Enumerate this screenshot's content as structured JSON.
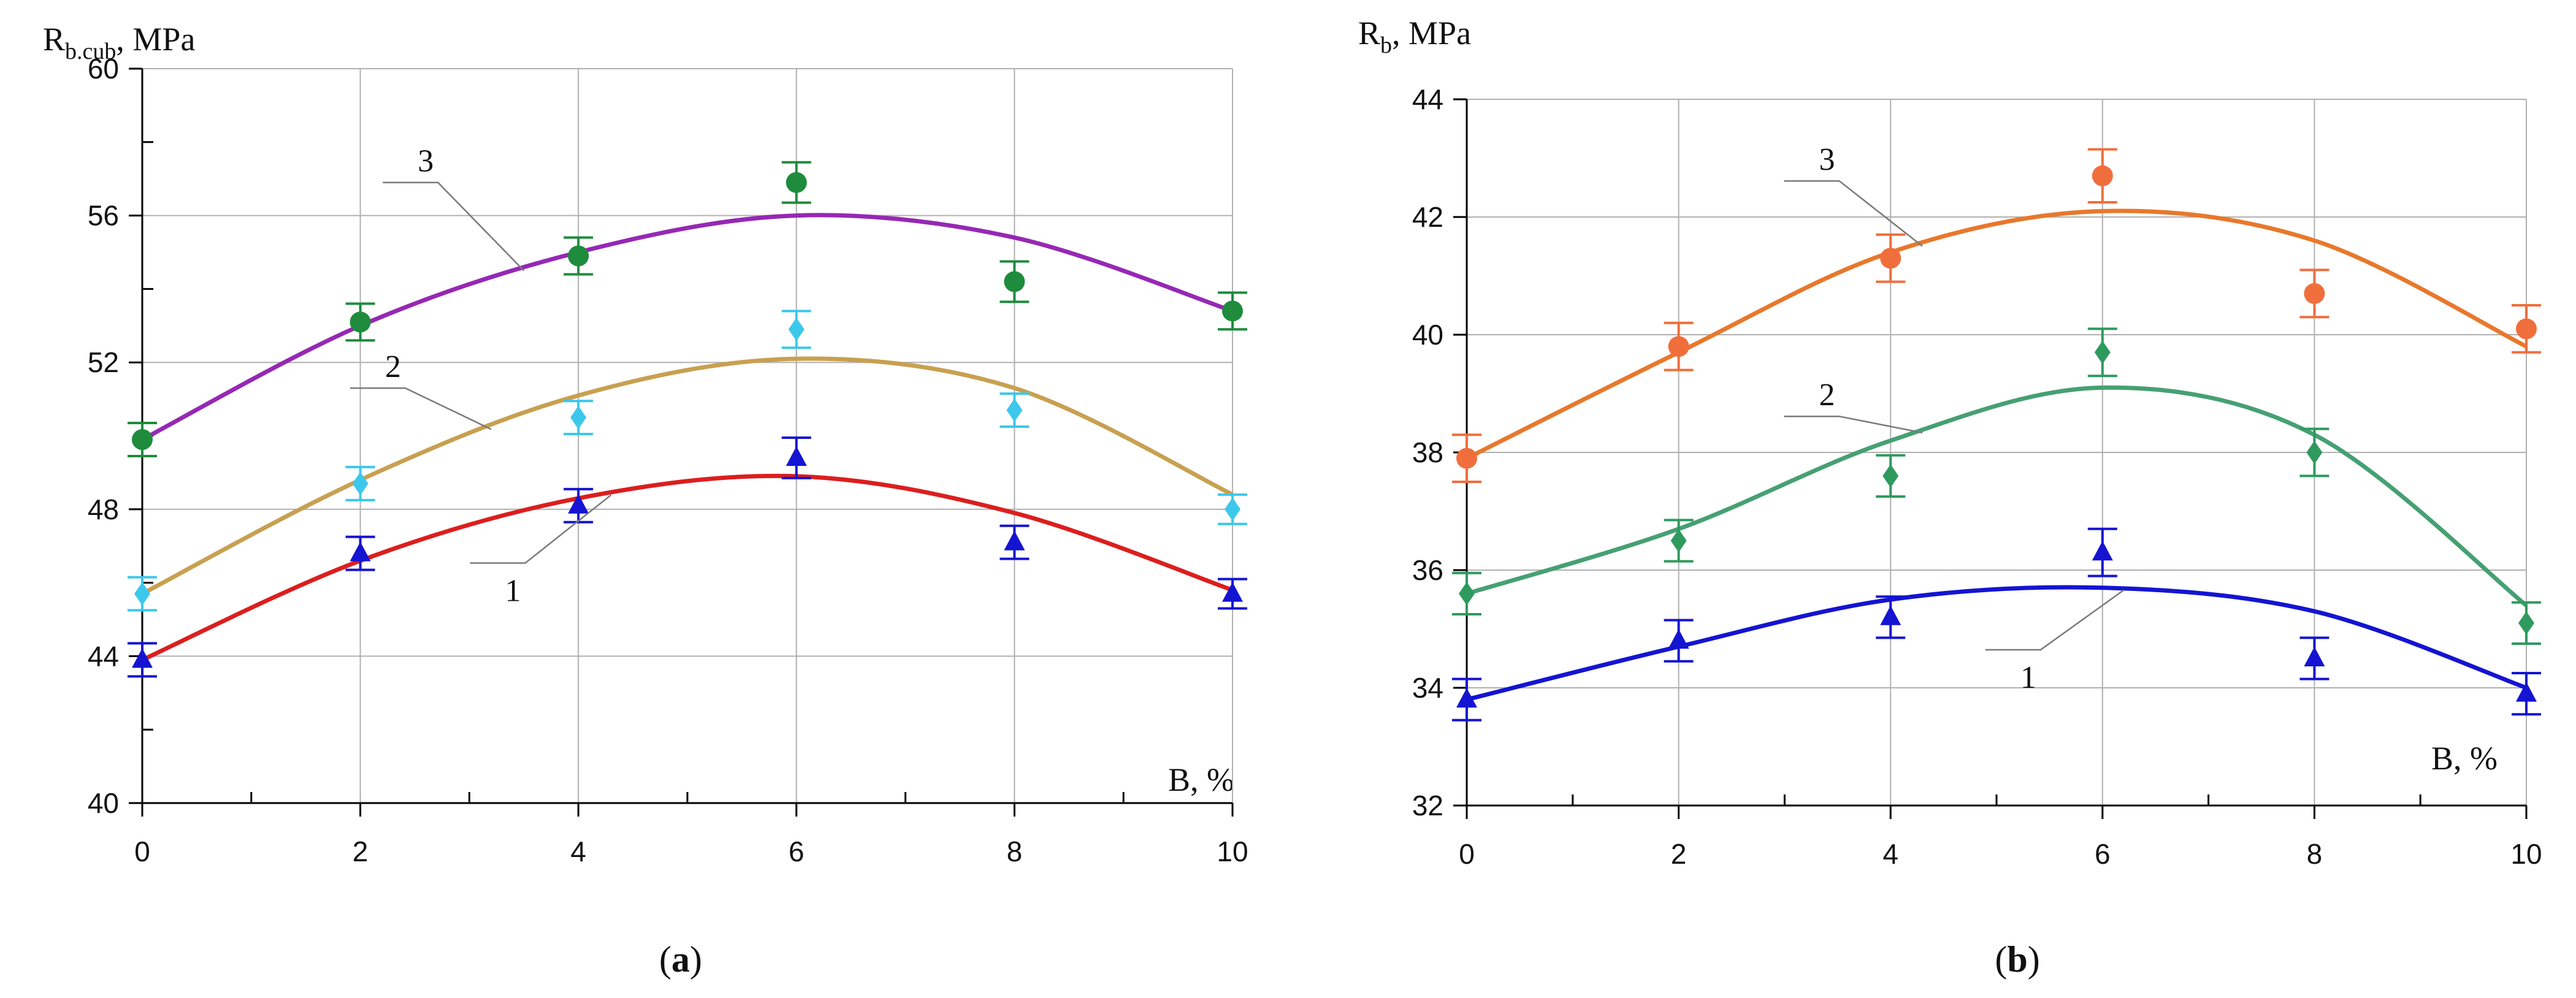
{
  "chart_data": [
    {
      "id": "a",
      "type": "scatter",
      "panel_label": {
        "open": "(",
        "letter": "a",
        "close": ")"
      },
      "ytitle": {
        "main": "R",
        "sub": "b.cub",
        "rest": ", MPa"
      },
      "xtitle": "B, %",
      "xlim": [
        0,
        10
      ],
      "ylim": [
        40,
        60
      ],
      "xticks": [
        "0",
        "2",
        "4",
        "6",
        "8",
        "10"
      ],
      "yticks": [
        "40",
        "44",
        "48",
        "52",
        "56",
        "60"
      ],
      "grid": true,
      "series": [
        {
          "label": "1",
          "marker": "triangle",
          "color": "#1414d2",
          "curve_color": "#dc1e1e",
          "x": [
            0,
            2,
            4,
            6,
            8,
            10
          ],
          "y": [
            43.9,
            46.8,
            48.1,
            49.4,
            47.1,
            45.7
          ],
          "err": [
            0.45,
            0.45,
            0.45,
            0.55,
            0.45,
            0.4
          ],
          "curve": [
            43.9,
            46.6,
            48.3,
            48.9,
            47.9,
            45.8
          ],
          "label_pos": {
            "x": 3.4,
            "y": 45.5
          }
        },
        {
          "label": "2",
          "marker": "diamond",
          "color": "#3cc8eb",
          "curve_color": "#c8a050",
          "x": [
            0,
            2,
            4,
            6,
            8,
            10
          ],
          "y": [
            45.7,
            48.7,
            50.5,
            52.9,
            50.7,
            48.0
          ],
          "err": [
            0.45,
            0.45,
            0.45,
            0.5,
            0.45,
            0.4
          ],
          "curve": [
            45.7,
            48.8,
            51.1,
            52.1,
            51.3,
            48.4
          ],
          "label_pos": {
            "x": 2.3,
            "y": 51.6
          }
        },
        {
          "label": "3",
          "marker": "circle",
          "color": "#1e8c3c",
          "curve_color": "#9628b4",
          "x": [
            0,
            2,
            4,
            6,
            8,
            10
          ],
          "y": [
            49.9,
            53.1,
            54.9,
            56.9,
            54.2,
            53.4
          ],
          "err": [
            0.45,
            0.5,
            0.5,
            0.55,
            0.55,
            0.5
          ],
          "curve": [
            49.9,
            53.0,
            55.0,
            56.0,
            55.4,
            53.4
          ],
          "label_pos": {
            "x": 2.6,
            "y": 57.2
          }
        }
      ]
    },
    {
      "id": "b",
      "type": "scatter",
      "panel_label": {
        "open": "(",
        "letter": "b",
        "close": ")"
      },
      "ytitle": {
        "main": "R",
        "sub": "b",
        "rest": ", MPa"
      },
      "xtitle": "B, %",
      "xlim": [
        0,
        10
      ],
      "ylim": [
        32,
        44
      ],
      "xticks": [
        "0",
        "2",
        "4",
        "6",
        "8",
        "10"
      ],
      "yticks": [
        "32",
        "34",
        "36",
        "38",
        "40",
        "42",
        "44"
      ],
      "grid": true,
      "series": [
        {
          "label": "1",
          "marker": "triangle",
          "color": "#1414d2",
          "curve_color": "#1414d2",
          "x": [
            0,
            2,
            4,
            6,
            8,
            10
          ],
          "y": [
            33.8,
            34.8,
            35.2,
            36.3,
            34.5,
            33.9
          ],
          "err": [
            0.35,
            0.35,
            0.35,
            0.4,
            0.35,
            0.35
          ],
          "curve": [
            33.8,
            34.7,
            35.5,
            35.7,
            35.3,
            34.0
          ],
          "label_pos": {
            "x": 5.3,
            "y": 34.0
          }
        },
        {
          "label": "2",
          "marker": "diamond",
          "color": "#2e9a5e",
          "curve_color": "#46a072",
          "x": [
            0,
            2,
            4,
            6,
            8,
            10
          ],
          "y": [
            35.6,
            36.5,
            37.6,
            39.7,
            38.0,
            35.1
          ],
          "err": [
            0.35,
            0.35,
            0.35,
            0.4,
            0.4,
            0.35
          ],
          "curve": [
            35.6,
            36.7,
            38.2,
            39.1,
            38.3,
            35.4
          ],
          "label_pos": {
            "x": 3.4,
            "y": 38.8
          }
        },
        {
          "label": "3",
          "marker": "circle",
          "color": "#f06e3c",
          "curve_color": "#e8782c",
          "x": [
            0,
            2,
            4,
            6,
            8,
            10
          ],
          "y": [
            37.9,
            39.8,
            41.3,
            42.7,
            40.7,
            40.1
          ],
          "err": [
            0.4,
            0.4,
            0.4,
            0.45,
            0.4,
            0.4
          ],
          "curve": [
            37.9,
            39.7,
            41.4,
            42.1,
            41.6,
            39.8
          ],
          "label_pos": {
            "x": 3.4,
            "y": 42.8
          }
        }
      ]
    }
  ]
}
